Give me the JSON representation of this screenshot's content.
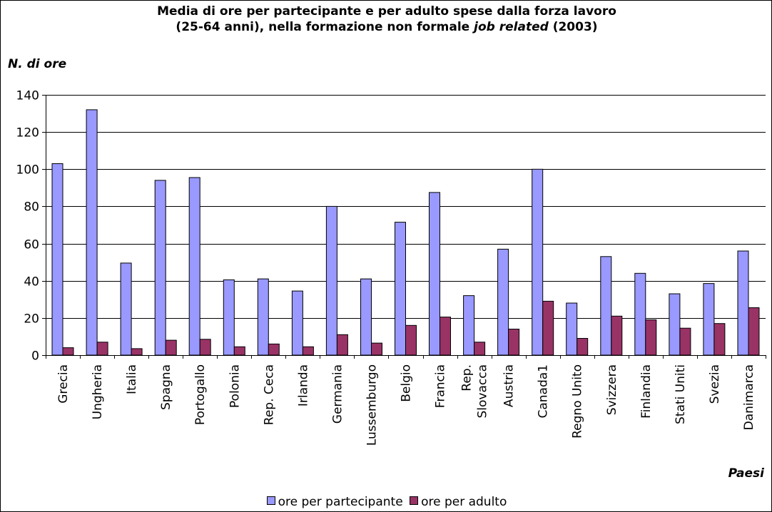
{
  "chart_data": {
    "type": "bar",
    "title_line1": "Media di ore per partecipante e per adulto spese dalla forza lavoro",
    "title_line2_prefix": "(25-64 anni), nella formazione non formale ",
    "title_line2_italic": "job related",
    "title_line2_suffix": " (2003)",
    "ylabel": "N. di ore",
    "xlabel": "Paesi",
    "ylim": [
      0,
      140
    ],
    "yticks": [
      0,
      20,
      40,
      60,
      80,
      100,
      120,
      140
    ],
    "grid": true,
    "legend_position": "bottom",
    "categories": [
      "Grecia",
      "Ungheria",
      "Italia",
      "Spagna",
      "Portogallo",
      "Polonia",
      "Rep. Ceca",
      "Irlanda",
      "Germania",
      "Lussemburgo",
      "Belgio",
      "Francia",
      "Rep. Slovacca",
      "Austria",
      "Canada1",
      "Regno Unito",
      "Svizzera",
      "Finlandia",
      "Stati Uniti",
      "Svezia",
      "Danimarca"
    ],
    "category_label_lines": [
      [
        "Grecia"
      ],
      [
        "Ungheria"
      ],
      [
        "Italia"
      ],
      [
        "Spagna"
      ],
      [
        "Portogallo"
      ],
      [
        "Polonia"
      ],
      [
        "Rep. Ceca"
      ],
      [
        "Irlanda"
      ],
      [
        "Germania"
      ],
      [
        "Lussemburgo"
      ],
      [
        "Belgio"
      ],
      [
        "Francia"
      ],
      [
        "Rep.",
        "Slovacca"
      ],
      [
        "Austria"
      ],
      [
        "Canada1"
      ],
      [
        "Regno Unito"
      ],
      [
        "Svizzera"
      ],
      [
        "Finlandia"
      ],
      [
        "Stati Uniti"
      ],
      [
        "Svezia"
      ],
      [
        "Danimarca"
      ]
    ],
    "series": [
      {
        "name": "ore per partecipante",
        "color": "#9999ff",
        "values": [
          103,
          132,
          49.5,
          94,
          95.5,
          40.5,
          41,
          34.5,
          80,
          41,
          71.5,
          87.5,
          32,
          57,
          100,
          28,
          53,
          44,
          33,
          38.5,
          56
        ]
      },
      {
        "name": "ore per adulto",
        "color": "#993366",
        "values": [
          4,
          7,
          3.5,
          8,
          8.5,
          4.5,
          6,
          4.5,
          11,
          6.5,
          16,
          20.5,
          7,
          14,
          29,
          9,
          21,
          19,
          14.5,
          17,
          25.5
        ]
      }
    ]
  }
}
